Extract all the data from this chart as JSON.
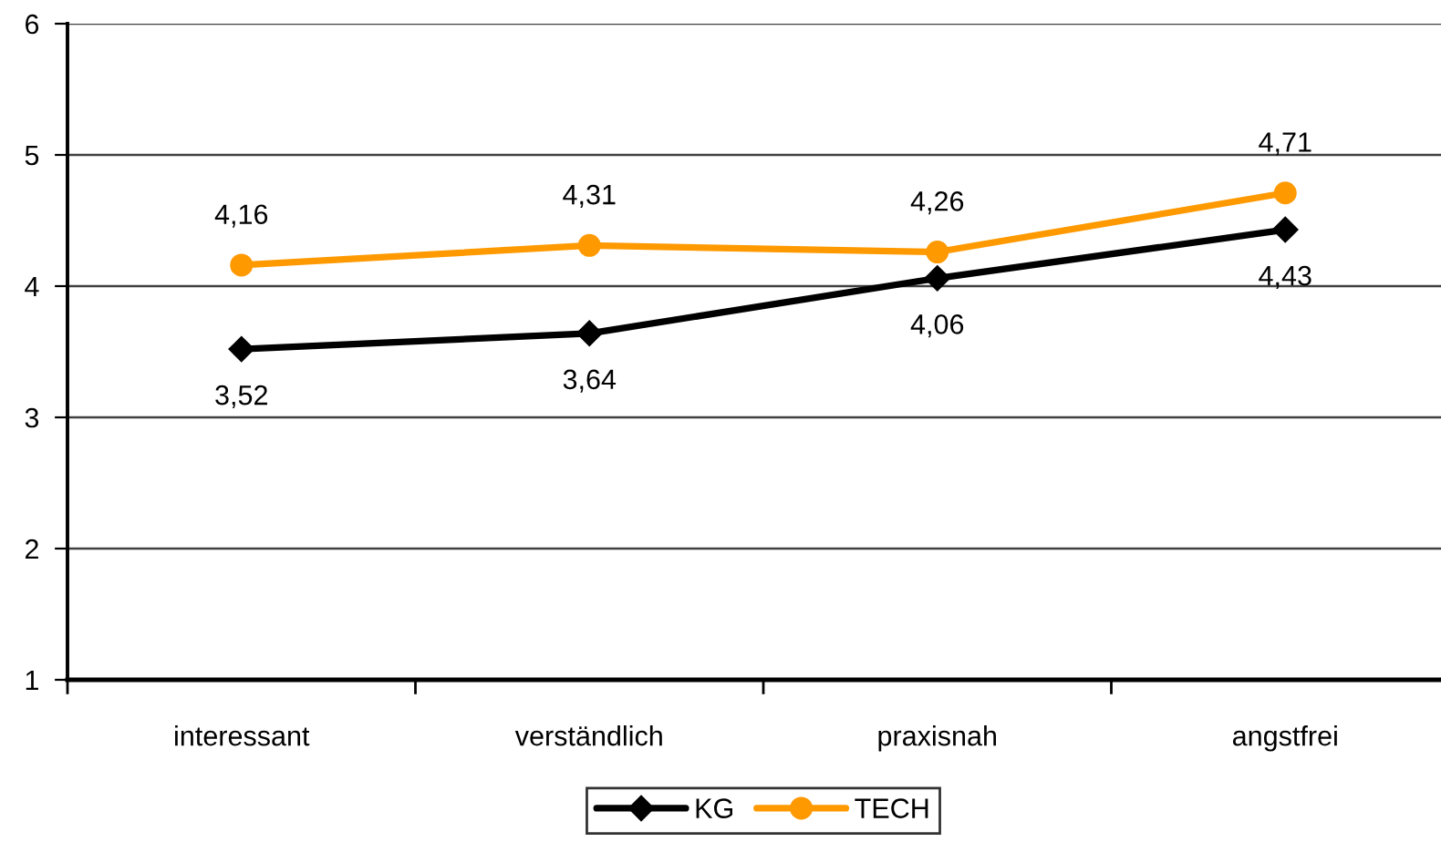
{
  "chart_data": {
    "type": "line",
    "categories": [
      "interessant",
      "verständlich",
      "praxisnah",
      "angstfrei"
    ],
    "series": [
      {
        "name": "KG",
        "color": "#000000",
        "marker": "diamond",
        "values": [
          3.52,
          3.64,
          4.06,
          4.43
        ],
        "value_labels": [
          "3,52",
          "3,64",
          "4,06",
          "4,43"
        ]
      },
      {
        "name": "TECH",
        "color": "#ff9900",
        "marker": "circle",
        "values": [
          4.16,
          4.31,
          4.26,
          4.71
        ],
        "value_labels": [
          "4,16",
          "4,31",
          "4,26",
          "4,71"
        ]
      }
    ],
    "ylim": [
      1,
      6
    ],
    "yticks": [
      1,
      2,
      3,
      4,
      5,
      6
    ],
    "grid": "y",
    "legend": "bottom",
    "line_style": "solid"
  }
}
